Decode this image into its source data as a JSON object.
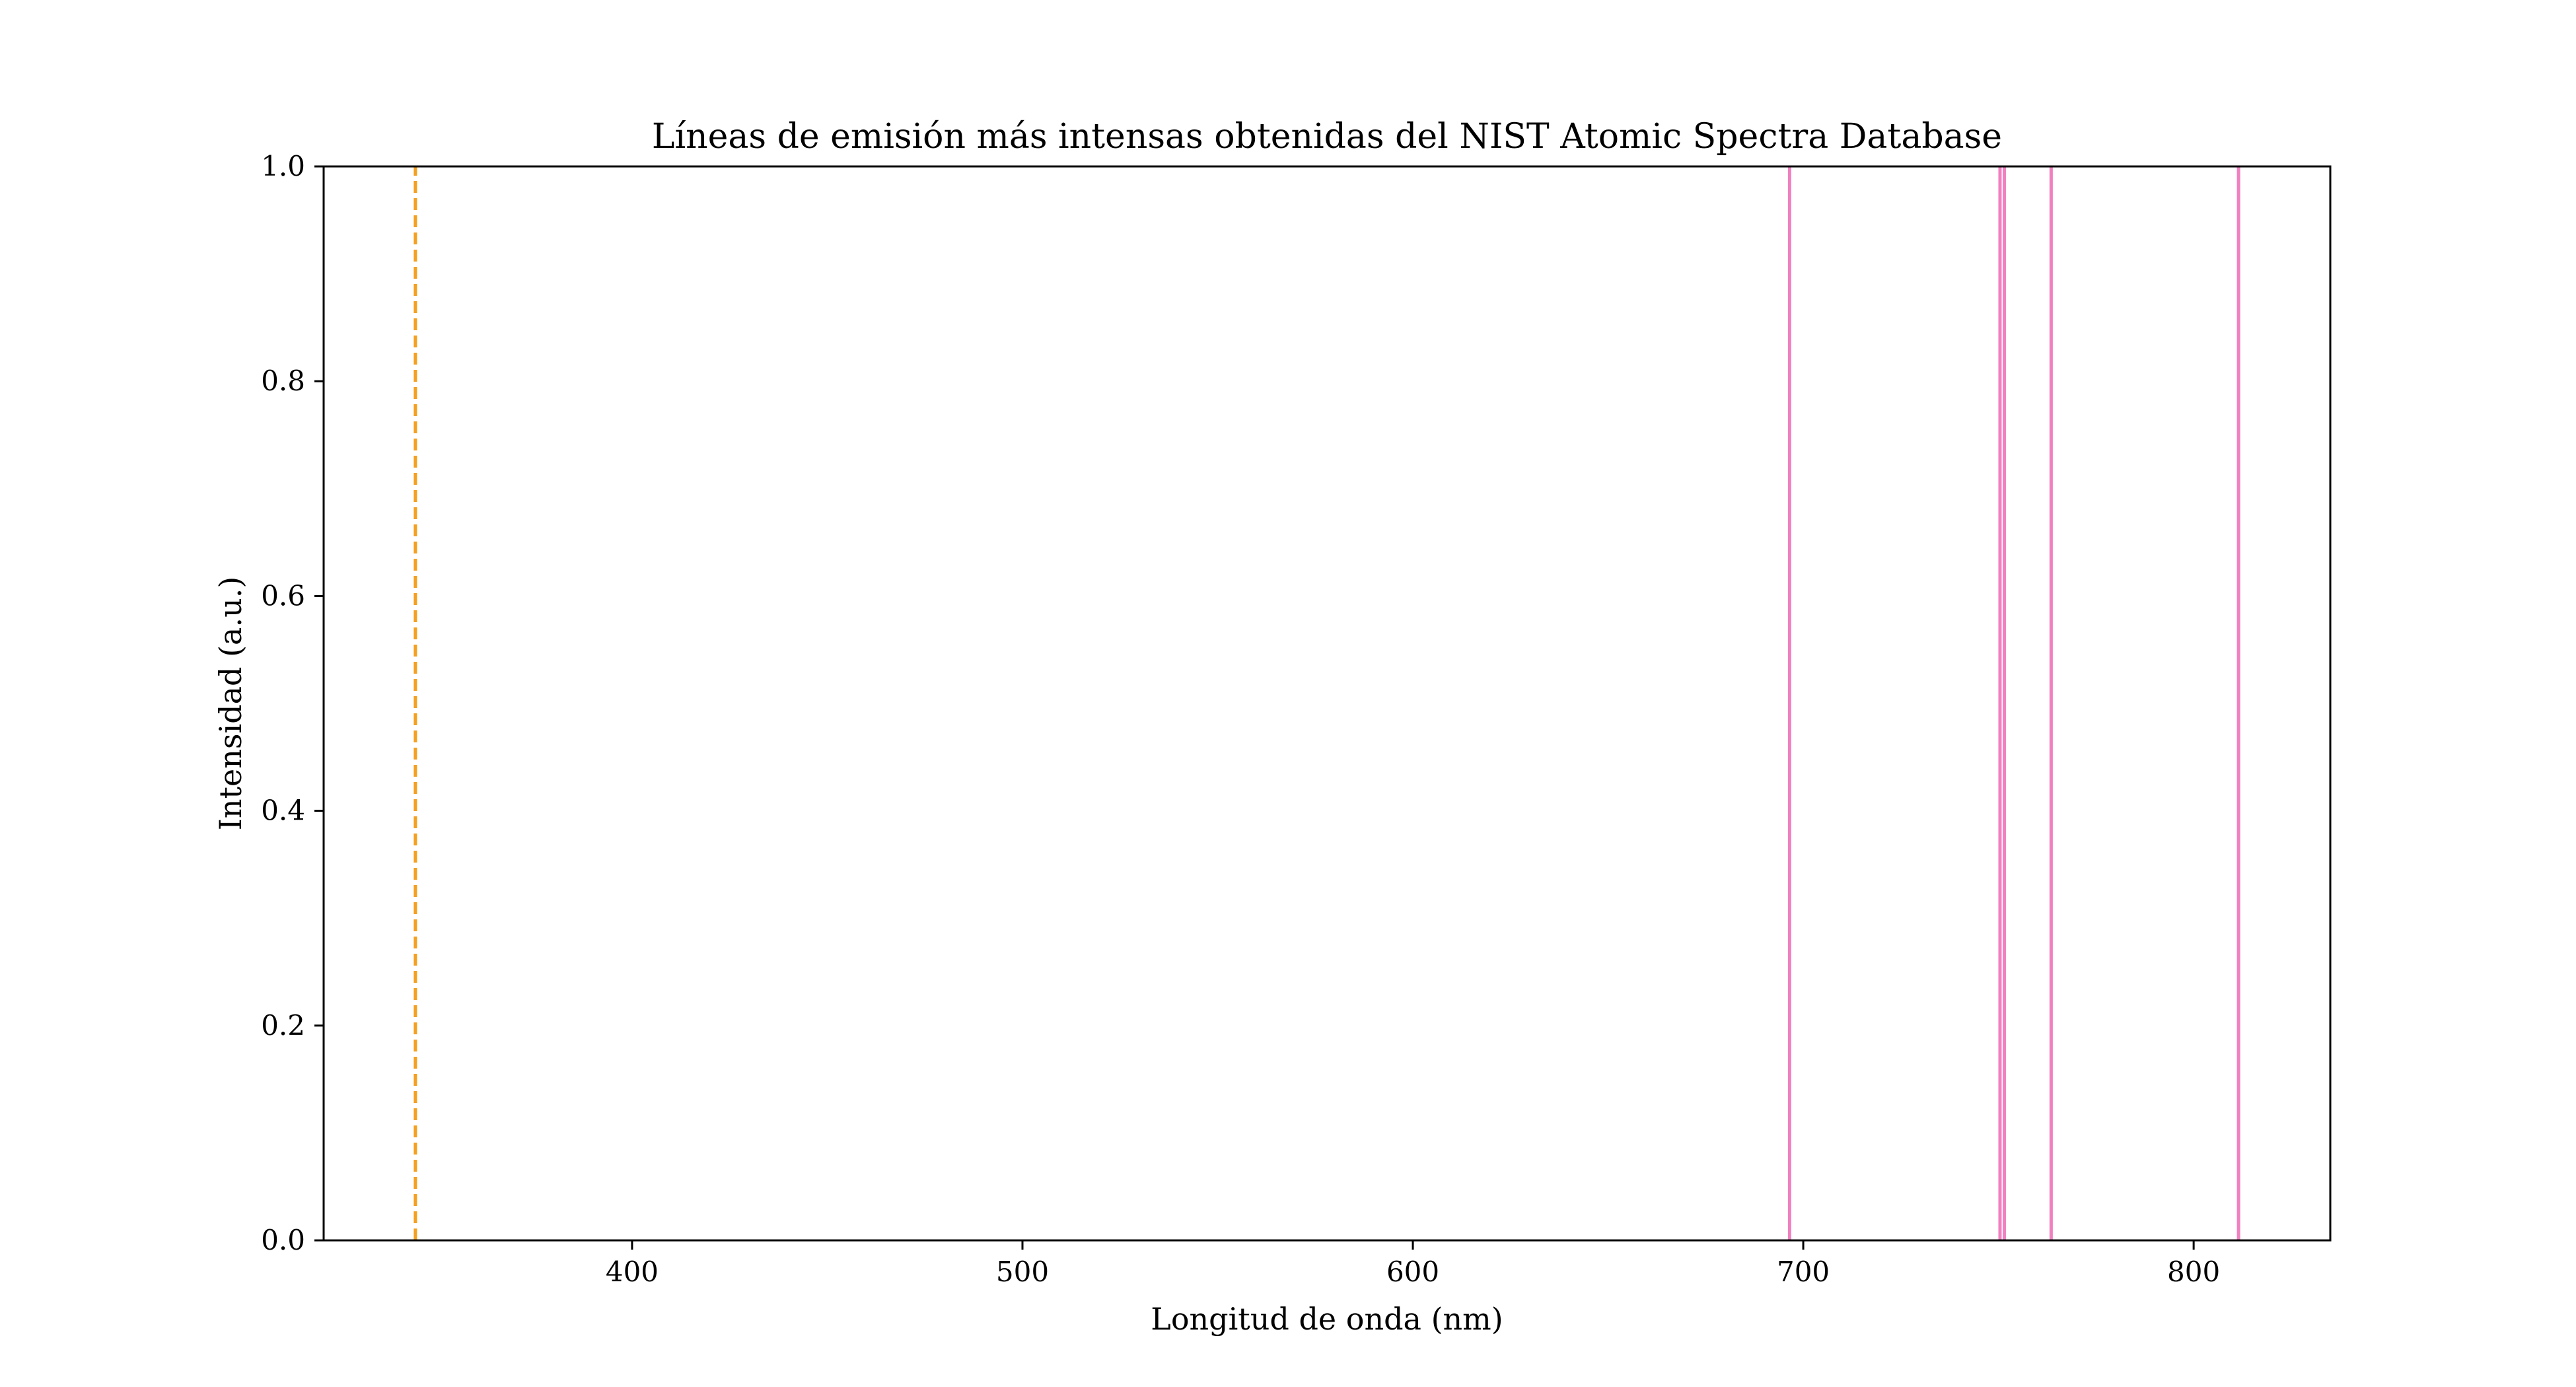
{
  "chart_data": {
    "type": "line",
    "title": "Líneas de emisión más intensas obtenidas del NIST Atomic Spectra Database",
    "xlabel": "Longitud de onda (nm)",
    "ylabel": "Intensidad (a.u.)",
    "xlim": [
      321,
      835
    ],
    "ylim": [
      0.0,
      1.0
    ],
    "x_ticks": [
      400,
      500,
      600,
      700,
      800
    ],
    "x_tick_labels": [
      "400",
      "500",
      "600",
      "700",
      "800"
    ],
    "y_ticks": [
      0.0,
      0.2,
      0.4,
      0.6,
      0.8,
      1.0
    ],
    "y_tick_labels": [
      "0.0",
      "0.2",
      "0.4",
      "0.6",
      "0.8",
      "1.0"
    ],
    "grid": false,
    "series": [
      {
        "style": "dashed",
        "color": "#f5a020",
        "x": [
          344.5
        ],
        "y": [
          1.0
        ]
      },
      {
        "style": "solid",
        "color": "#f080c0",
        "x": [
          696.5,
          750.4,
          751.5,
          763.5,
          811.5
        ],
        "y": [
          1.0,
          1.0,
          1.0,
          1.0,
          1.0
        ]
      }
    ]
  }
}
